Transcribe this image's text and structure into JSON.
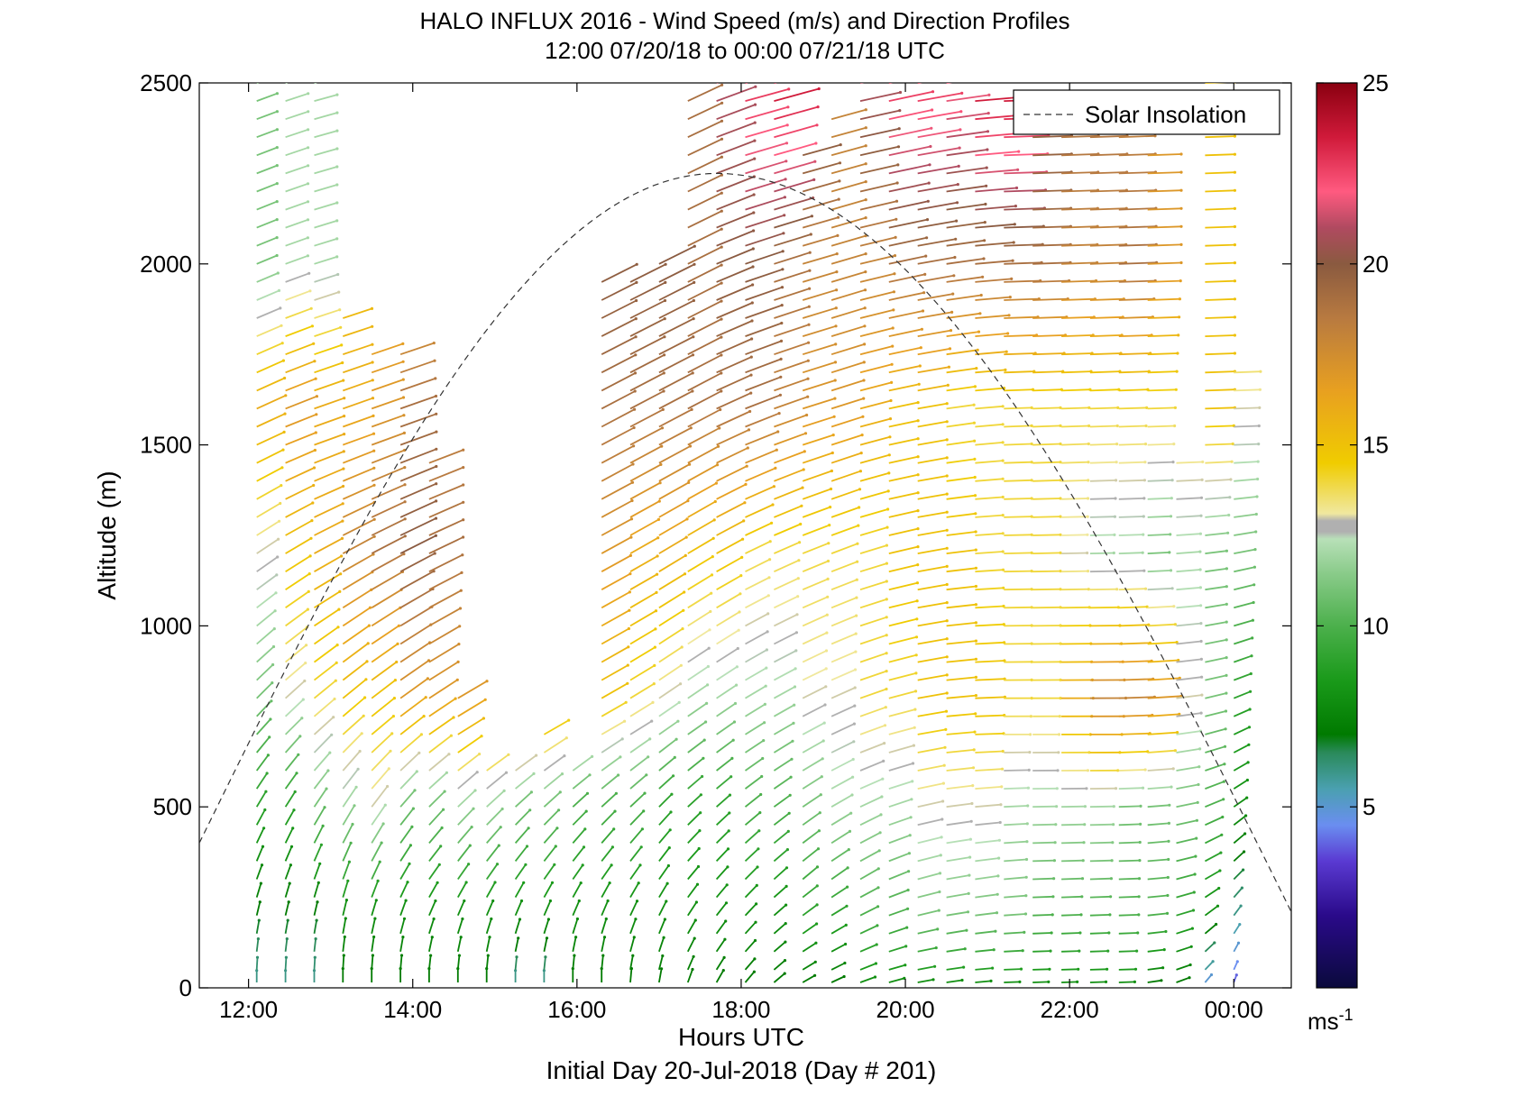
{
  "chart_data": {
    "type": "vector_field",
    "title": "HALO INFLUX 2016 - Wind Speed (m/s) and Direction Profiles",
    "subtitle": "12:00 07/20/18 to 00:00 07/21/18  UTC",
    "xlabel": "Hours UTC",
    "ylabel": "Altitude (m)",
    "footer": "Initial Day 20-Jul-2018 (Day # 201)",
    "xlim": [
      11.4,
      24.7
    ],
    "ylim": [
      0,
      2500
    ],
    "x_ticks": [
      {
        "value": 12,
        "label": "12:00"
      },
      {
        "value": 14,
        "label": "14:00"
      },
      {
        "value": 16,
        "label": "16:00"
      },
      {
        "value": 18,
        "label": "18:00"
      },
      {
        "value": 20,
        "label": "20:00"
      },
      {
        "value": 22,
        "label": "22:00"
      },
      {
        "value": 24,
        "label": "00:00"
      }
    ],
    "y_ticks": [
      {
        "value": 0,
        "label": "0"
      },
      {
        "value": 500,
        "label": "500"
      },
      {
        "value": 1000,
        "label": "1000"
      },
      {
        "value": 1500,
        "label": "1500"
      },
      {
        "value": 2000,
        "label": "2000"
      },
      {
        "value": 2500,
        "label": "2500"
      }
    ],
    "legend": {
      "entries": [
        {
          "label": "Solar Insolation",
          "style": "dashed"
        }
      ],
      "placement": "top-right"
    },
    "solar_insolation": {
      "start": [
        11.4,
        400
      ],
      "peak": [
        17.7,
        2250
      ],
      "end": [
        24.7,
        210
      ]
    },
    "colorbar": {
      "unit": "ms",
      "unit_exp": "-1",
      "range": [
        0,
        25
      ],
      "ticks": [
        {
          "value": 5,
          "label": "5"
        },
        {
          "value": 10,
          "label": "10"
        },
        {
          "value": 15,
          "label": "15"
        },
        {
          "value": 20,
          "label": "20"
        },
        {
          "value": 25,
          "label": "25"
        }
      ],
      "stops": [
        {
          "v": 0,
          "color": "#0a0a3c"
        },
        {
          "v": 2,
          "color": "#2a0a8a"
        },
        {
          "v": 3.5,
          "color": "#5a3ad2"
        },
        {
          "v": 4.5,
          "color": "#6a8ef0"
        },
        {
          "v": 5.5,
          "color": "#4aa0b0"
        },
        {
          "v": 6.5,
          "color": "#2a8a5a"
        },
        {
          "v": 7,
          "color": "#007a00"
        },
        {
          "v": 8.5,
          "color": "#1a9a1a"
        },
        {
          "v": 10,
          "color": "#4cb04c"
        },
        {
          "v": 11.5,
          "color": "#8ccc8c"
        },
        {
          "v": 12.4,
          "color": "#b8e0b8"
        },
        {
          "v": 12.6,
          "color": "#b0b0b0"
        },
        {
          "v": 12.9,
          "color": "#b0b0b0"
        },
        {
          "v": 13.1,
          "color": "#f0e8a0"
        },
        {
          "v": 14.5,
          "color": "#f0cc00"
        },
        {
          "v": 16.5,
          "color": "#e8a020"
        },
        {
          "v": 18.5,
          "color": "#b87a40"
        },
        {
          "v": 20,
          "color": "#8a5a40"
        },
        {
          "v": 21,
          "color": "#b04a60"
        },
        {
          "v": 22,
          "color": "#ff5a80"
        },
        {
          "v": 23.5,
          "color": "#d01a3a"
        },
        {
          "v": 25,
          "color": "#8a0010"
        }
      ]
    },
    "wind_profiles": {
      "times": [
        12.1,
        12.45,
        12.8,
        13.15,
        13.5,
        13.85,
        14.2,
        14.55,
        14.9,
        15.25,
        15.6,
        15.95,
        16.3,
        16.65,
        17.0,
        17.35,
        17.7,
        18.05,
        18.4,
        18.75,
        19.1,
        19.45,
        19.8,
        20.15,
        20.5,
        20.85,
        21.2,
        21.55,
        21.9,
        22.25,
        22.6,
        22.95,
        23.3,
        23.65,
        24.0
      ],
      "top_m": [
        2500,
        2500,
        2500,
        1850,
        1750,
        1750,
        1450,
        800,
        620,
        620,
        700,
        620,
        1970,
        1980,
        2000,
        2450,
        2500,
        2500,
        2500,
        2300,
        2400,
        2500,
        2500,
        2500,
        2500,
        2450,
        2450,
        2450,
        2400,
        2400,
        2350,
        2300,
        1470,
        2500,
        1700
      ],
      "level_step_m": 50,
      "speed_ms": [
        {
          "z": 0,
          "v": [
            6,
            6,
            6,
            7,
            7,
            7,
            7,
            7,
            7,
            6,
            6,
            7,
            7,
            7,
            7,
            7,
            7,
            7,
            7,
            7,
            7,
            8,
            8,
            8,
            8,
            8,
            8,
            8,
            8,
            8,
            8,
            7,
            7,
            5,
            4
          ]
        },
        {
          "z": 200,
          "v": [
            7,
            7,
            7,
            8,
            8,
            8,
            8,
            8,
            8,
            8,
            8,
            8,
            8,
            8,
            8,
            8,
            8,
            8,
            8,
            9,
            9,
            10,
            10,
            11,
            11,
            11,
            11,
            10,
            10,
            10,
            10,
            10,
            9,
            8,
            6
          ]
        },
        {
          "z": 500,
          "v": [
            9,
            9,
            11,
            12,
            13,
            11,
            11,
            12,
            12,
            11,
            11,
            10,
            10,
            10,
            9,
            9,
            9,
            10,
            10,
            11,
            12,
            12,
            12,
            13,
            13,
            13,
            12,
            12,
            12,
            12,
            11,
            11,
            11,
            10,
            8
          ]
        },
        {
          "z": 800,
          "v": [
            11,
            13,
            14,
            15,
            15,
            17,
            17,
            17,
            17,
            17,
            16,
            16,
            15,
            14,
            13,
            12,
            12,
            12,
            12,
            13,
            13,
            14,
            14,
            15,
            15,
            15,
            14,
            14,
            16,
            18,
            18,
            17,
            13,
            11,
            9
          ]
        },
        {
          "z": 1200,
          "v": [
            13,
            15,
            16,
            18,
            19,
            20,
            19,
            17,
            17,
            17,
            16,
            16,
            17,
            16,
            16,
            15,
            15,
            14,
            14,
            14,
            14,
            14,
            15,
            15,
            15,
            14,
            14,
            14,
            13,
            12,
            12,
            11,
            12,
            11,
            11
          ]
        },
        {
          "z": 1600,
          "v": [
            16,
            17,
            16,
            16,
            17,
            19,
            18,
            17,
            17,
            17,
            17,
            17,
            19,
            19,
            19,
            19,
            19,
            19,
            18,
            17,
            17,
            16,
            15,
            15,
            14,
            14,
            14,
            14,
            14,
            14,
            14,
            14,
            14,
            15,
            13
          ]
        },
        {
          "z": 2000,
          "v": [
            11,
            12,
            12,
            15,
            16,
            16,
            16,
            16,
            16,
            16,
            16,
            16,
            20,
            20,
            20,
            19,
            20,
            20,
            19,
            18,
            18,
            18,
            19,
            19,
            19,
            19,
            19,
            19,
            18,
            18,
            19,
            17,
            16,
            15,
            15
          ]
        },
        {
          "z": 2500,
          "v": [
            11,
            12,
            12,
            15,
            16,
            16,
            16,
            16,
            16,
            16,
            16,
            16,
            20,
            20,
            20,
            19,
            21,
            23,
            24,
            21,
            18,
            21,
            23,
            23,
            22,
            24,
            24,
            20,
            19,
            19,
            18,
            17,
            16,
            15,
            15
          ]
        }
      ],
      "direction_deg": [
        {
          "z": 0,
          "v": [
            180,
            180,
            180,
            180,
            180,
            180,
            180,
            180,
            180,
            180,
            180,
            180,
            180,
            185,
            190,
            200,
            210,
            220,
            230,
            240,
            245,
            250,
            255,
            260,
            262,
            265,
            268,
            268,
            268,
            268,
            268,
            262,
            250,
            220,
            200
          ]
        },
        {
          "z": 300,
          "v": [
            200,
            200,
            200,
            200,
            205,
            210,
            215,
            215,
            215,
            215,
            215,
            215,
            215,
            215,
            215,
            220,
            222,
            225,
            228,
            230,
            235,
            240,
            248,
            255,
            260,
            262,
            265,
            268,
            268,
            268,
            268,
            265,
            255,
            240,
            225
          ]
        },
        {
          "z": 700,
          "v": [
            222,
            225,
            228,
            228,
            230,
            232,
            235,
            238,
            240,
            240,
            240,
            240,
            240,
            238,
            235,
            235,
            235,
            238,
            240,
            242,
            245,
            250,
            255,
            260,
            265,
            268,
            270,
            270,
            270,
            270,
            268,
            266,
            262,
            255,
            245
          ]
        },
        {
          "z": 1500,
          "v": [
            245,
            248,
            250,
            250,
            250,
            250,
            250,
            250,
            250,
            250,
            245,
            240,
            242,
            242,
            242,
            242,
            245,
            248,
            250,
            252,
            252,
            255,
            258,
            260,
            262,
            265,
            268,
            268,
            268,
            268,
            268,
            268,
            268,
            268,
            268
          ]
        },
        {
          "z": 2500,
          "v": [
            250,
            252,
            255,
            255,
            255,
            255,
            255,
            255,
            255,
            255,
            255,
            255,
            245,
            245,
            245,
            245,
            250,
            255,
            255,
            255,
            255,
            258,
            258,
            260,
            262,
            265,
            268,
            268,
            268,
            268,
            268,
            268,
            268,
            268,
            268
          ]
        }
      ]
    }
  }
}
